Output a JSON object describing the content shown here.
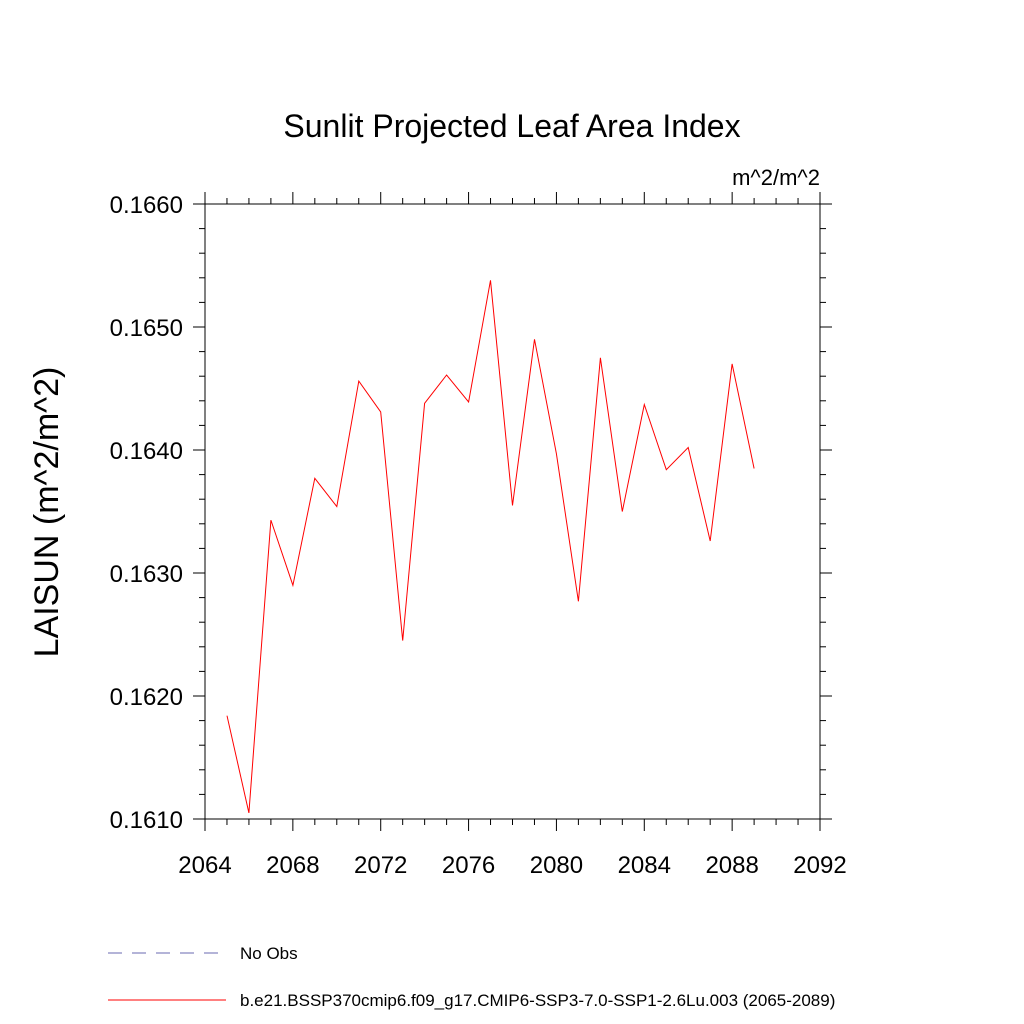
{
  "chart_data": {
    "type": "line",
    "title": "Sunlit Projected Leaf Area Index",
    "units": "m^2/m^2",
    "xlabel": "",
    "ylabel": "LAISUN  (m^2/m^2)",
    "xlim": [
      2064,
      2092
    ],
    "ylim": [
      0.161,
      0.166
    ],
    "x_ticks": [
      2064,
      2068,
      2072,
      2076,
      2080,
      2084,
      2088,
      2092
    ],
    "x_tick_labels": [
      "2064",
      "2068",
      "2072",
      "2076",
      "2080",
      "2084",
      "2088",
      "2092"
    ],
    "y_ticks": [
      0.161,
      0.162,
      0.163,
      0.164,
      0.165,
      0.166
    ],
    "y_tick_labels": [
      "0.1610",
      "0.1620",
      "0.1630",
      "0.1640",
      "0.1650",
      "0.1660"
    ],
    "grid": false,
    "legend_position": "bottom",
    "series": [
      {
        "name": "b.e21.BSSP370cmip6.f09_g17.CMIP6-SSP3-7.0-SSP1-2.6Lu.003 (2065-2089)",
        "color": "#ff0000",
        "style": "solid",
        "x": [
          2065,
          2066,
          2067,
          2068,
          2069,
          2070,
          2071,
          2072,
          2073,
          2074,
          2075,
          2076,
          2077,
          2078,
          2079,
          2080,
          2081,
          2082,
          2083,
          2084,
          2085,
          2086,
          2087,
          2088,
          2089
        ],
        "values": [
          0.16184,
          0.16105,
          0.16343,
          0.1629,
          0.16377,
          0.16354,
          0.16456,
          0.16431,
          0.16245,
          0.16438,
          0.16461,
          0.16439,
          0.16538,
          0.16355,
          0.1649,
          0.16397,
          0.16277,
          0.16475,
          0.1635,
          0.16437,
          0.16384,
          0.16402,
          0.16326,
          0.1647,
          0.16385
        ]
      }
    ],
    "legend": [
      {
        "label": "No Obs",
        "color": "#6a6ab0",
        "style": "dashed"
      },
      {
        "label": "b.e21.BSSP370cmip6.f09_g17.CMIP6-SSP3-7.0-SSP1-2.6Lu.003 (2065-2089)",
        "color": "#ff0000",
        "style": "solid"
      }
    ]
  }
}
